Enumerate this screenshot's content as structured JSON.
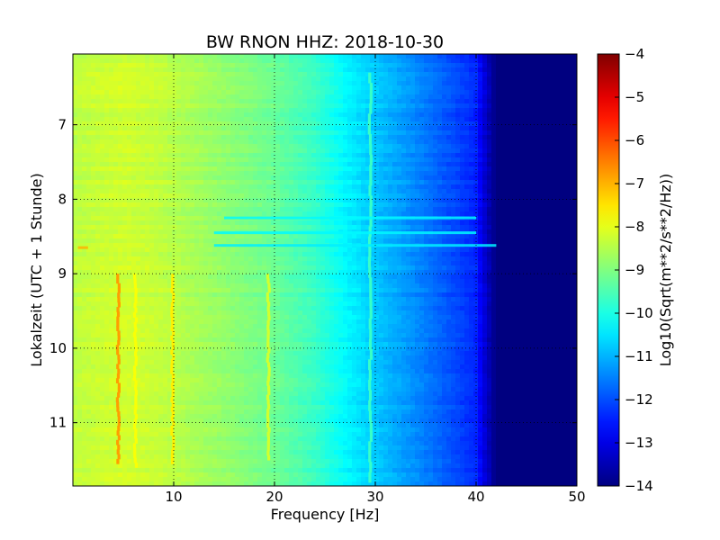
{
  "chart_data": {
    "type": "heatmap",
    "title": "BW RNON HHZ: 2018-10-30",
    "xlabel": "Frequency [Hz]",
    "ylabel": "Lokalzeit (UTC + 1 Stunde)",
    "xlim": [
      0,
      50
    ],
    "ylim": [
      11.85,
      6.05
    ],
    "y_axis_inverted": true,
    "x_ticks": [
      10,
      20,
      30,
      40,
      50
    ],
    "x_tick_labels": [
      "10",
      "20",
      "30",
      "40",
      "50"
    ],
    "y_ticks": [
      7,
      8,
      9,
      10,
      11
    ],
    "y_tick_labels": [
      "7",
      "8",
      "9",
      "10",
      "11"
    ],
    "grid": true,
    "colormap": "jet",
    "colorbar": {
      "label": "Log10(Sqrt(m**2/s**2/Hz))",
      "range": [
        -14,
        -4
      ],
      "ticks": [
        -4,
        -5,
        -6,
        -7,
        -8,
        -9,
        -10,
        -11,
        -12,
        -13,
        -14
      ],
      "tick_labels": [
        "−4",
        "−5",
        "−6",
        "−7",
        "−8",
        "−9",
        "−10",
        "−11",
        "−12",
        "−13",
        "−14"
      ]
    },
    "frequency_profile_hz": [
      0,
      2,
      5,
      8,
      12,
      16,
      20,
      24,
      27,
      30,
      34,
      37,
      40,
      41,
      42,
      50
    ],
    "frequency_profile_level": [
      -8.4,
      -8.3,
      -8.2,
      -8.3,
      -8.6,
      -8.9,
      -9.2,
      -9.7,
      -10.3,
      -10.8,
      -11.4,
      -11.9,
      -12.4,
      -13.3,
      -14,
      -14
    ],
    "features": [
      {
        "kind": "vertical",
        "freq": 4.5,
        "t_start": 9.0,
        "t_end": 11.55,
        "level": -6.8
      },
      {
        "kind": "vertical",
        "freq": 6.2,
        "t_start": 9.0,
        "t_end": 11.6,
        "level": -7.8
      },
      {
        "kind": "vertical",
        "freq": 9.9,
        "t_start": 9.0,
        "t_end": 11.55,
        "level": -7.6
      },
      {
        "kind": "vertical",
        "freq": 19.4,
        "t_start": 9.0,
        "t_end": 11.5,
        "level": -8.2
      },
      {
        "kind": "vertical",
        "freq": 29.5,
        "t_start": 6.3,
        "t_end": 11.8,
        "level": -9.7
      },
      {
        "kind": "horizontal",
        "time": 8.65,
        "f_start": 0.5,
        "f_end": 1.5,
        "level": -7.0
      },
      {
        "kind": "horizontal",
        "time": 8.45,
        "f_start": 14,
        "f_end": 40,
        "level": -10.3
      },
      {
        "kind": "horizontal",
        "time": 8.62,
        "f_start": 14,
        "f_end": 42,
        "level": -10.4
      },
      {
        "kind": "horizontal",
        "time": 8.25,
        "f_start": 15,
        "f_end": 40,
        "level": -10.3
      }
    ]
  }
}
